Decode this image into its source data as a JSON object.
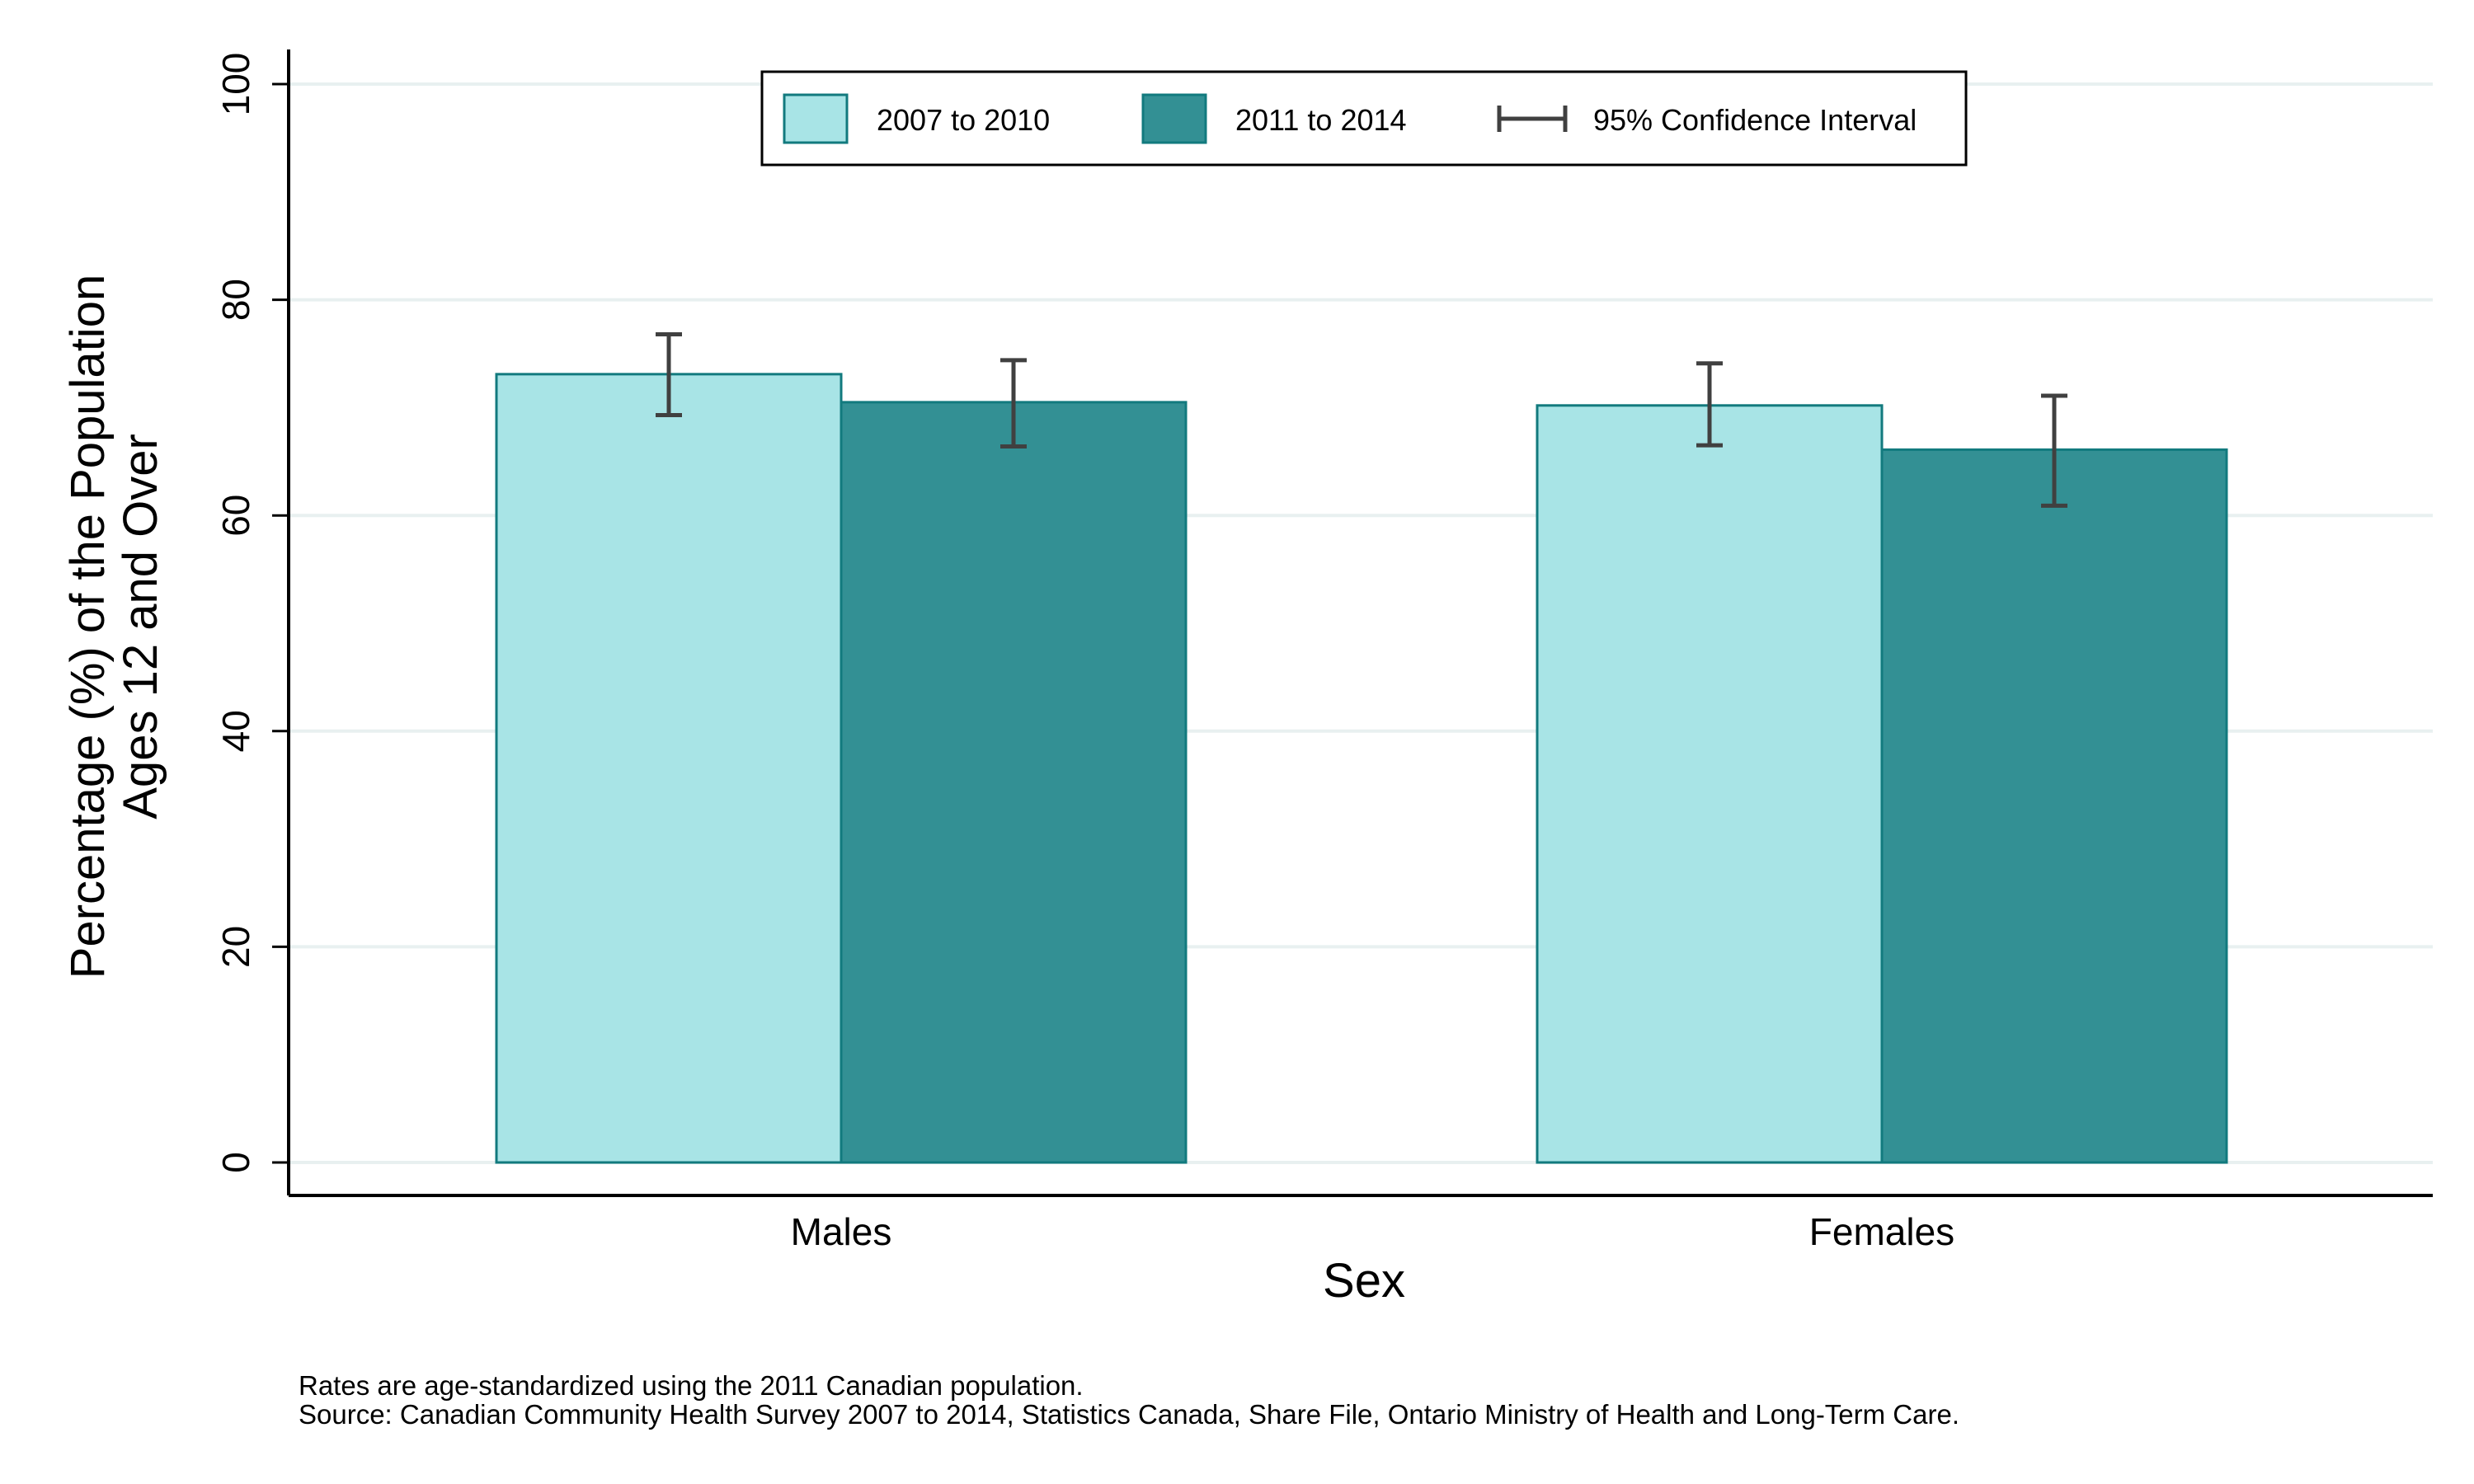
{
  "chart_data": {
    "type": "bar",
    "categories": [
      "Males",
      "Females"
    ],
    "series": [
      {
        "name": "2007 to 2010",
        "color": "#a8e4e6",
        "values": [
          73.1,
          70.2
        ],
        "ci_low": [
          69.3,
          66.5
        ],
        "ci_high": [
          76.8,
          74.1
        ]
      },
      {
        "name": "2011 to 2014",
        "color": "#339094",
        "values": [
          70.5,
          66.1
        ],
        "ci_low": [
          66.4,
          60.9
        ],
        "ci_high": [
          74.4,
          71.1
        ]
      }
    ],
    "ci_legend_label": "95% Confidence Interval",
    "xlabel": "Sex",
    "ylabel_lines": [
      "Percentage (%) of the Population",
      "Ages 12 and Over"
    ],
    "yticks": [
      0,
      20,
      40,
      60,
      80,
      100
    ],
    "ylim": [
      0,
      100
    ],
    "grid": true,
    "legend_position": "top-center",
    "bar_edge_color": "#127a7e",
    "ci_color": "#404040",
    "notes": [
      "Rates are age-standardized using the 2011 Canadian population.",
      "Source: Canadian Community Health Survey 2007 to 2014, Statistics Canada, Share File, Ontario Ministry of Health and Long-Term Care."
    ]
  }
}
